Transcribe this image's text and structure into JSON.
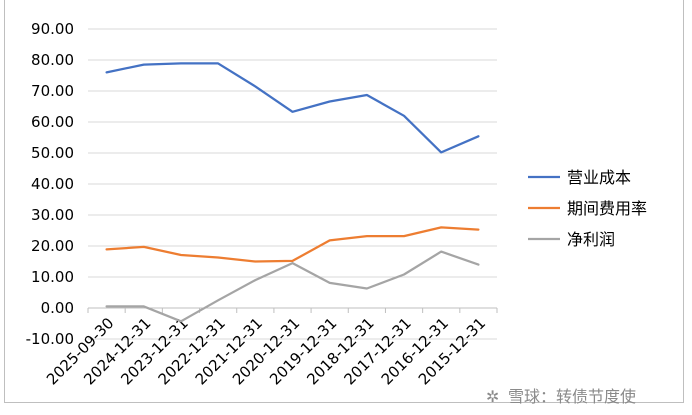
{
  "chart_data": {
    "type": "line",
    "categories": [
      "2025-09-30",
      "2024-12-31",
      "2023-12-31",
      "2022-12-31",
      "2021-12-31",
      "2020-12-31",
      "2019-12-31",
      "2018-12-31",
      "2017-12-31",
      "2016-12-31",
      "2015-12-31"
    ],
    "series": [
      {
        "name": "营业成本",
        "color": "#4472c4",
        "values": [
          76.0,
          78.5,
          78.9,
          78.9,
          71.5,
          63.3,
          66.6,
          68.7,
          62.0,
          50.2,
          55.4
        ]
      },
      {
        "name": "期间费用率",
        "color": "#ed7d31",
        "values": [
          18.9,
          19.7,
          17.1,
          16.3,
          15.0,
          15.2,
          21.8,
          23.2,
          23.2,
          26.0,
          25.3
        ]
      },
      {
        "name": "净利润",
        "color": "#a5a5a5",
        "values": [
          0.5,
          0.5,
          -4.3,
          2.5,
          9.0,
          14.5,
          8.1,
          6.3,
          10.8,
          18.2,
          14.0
        ]
      }
    ],
    "ylim": [
      -10,
      90
    ],
    "yticks": [
      "-10.00",
      "0.00",
      "10.00",
      "20.00",
      "30.00",
      "40.00",
      "50.00",
      "60.00",
      "70.00",
      "80.00",
      "90.00"
    ],
    "grid": true,
    "legend": "right"
  },
  "watermark": {
    "glyph": "✲",
    "text": "雪球：转债节度使"
  }
}
